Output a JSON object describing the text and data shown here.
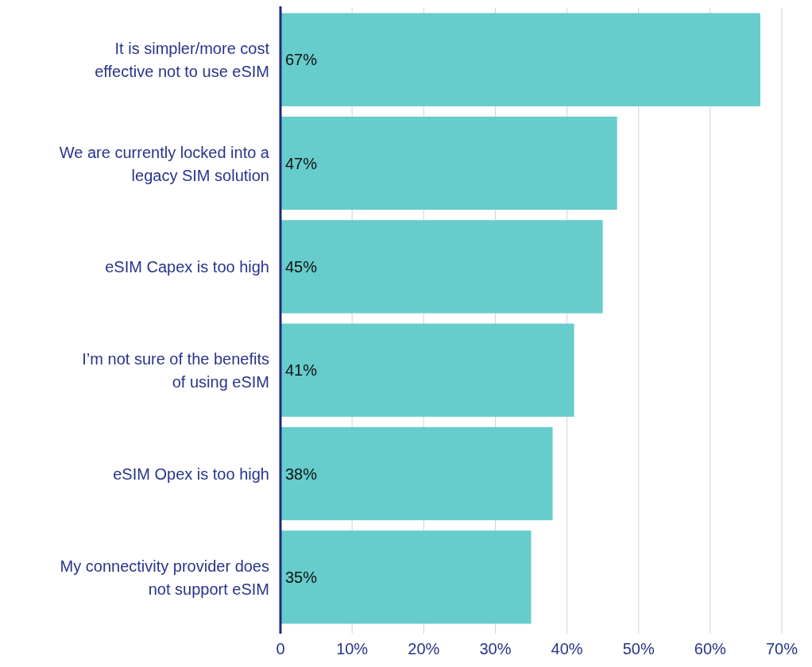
{
  "chart_data": {
    "type": "bar",
    "orientation": "horizontal",
    "categories": [
      "It is simpler/more cost effective not to use eSIM",
      "We are currently locked into a legacy SIM solution",
      "eSIM Capex is too high",
      "I’m not sure of the benefits of using eSIM",
      "eSIM Opex is too high",
      "My connectivity provider does not support eSIM"
    ],
    "values": [
      67,
      47,
      45,
      41,
      38,
      35
    ],
    "value_labels": [
      "67%",
      "47%",
      "45%",
      "41%",
      "38%",
      "35%"
    ],
    "color": "#66cccc",
    "xlim": [
      0,
      70
    ],
    "xticks": [
      0,
      {
        "value": 10,
        "label": "10%"
      },
      {
        "value": 20,
        "label": "20%"
      },
      {
        "value": 30,
        "label": "30%"
      },
      {
        "value": 40,
        "label": "40%"
      },
      {
        "value": 50,
        "label": "50%"
      },
      {
        "value": 60,
        "label": "60%"
      },
      {
        "value": 70,
        "label": "70%"
      }
    ],
    "grid": "x"
  }
}
